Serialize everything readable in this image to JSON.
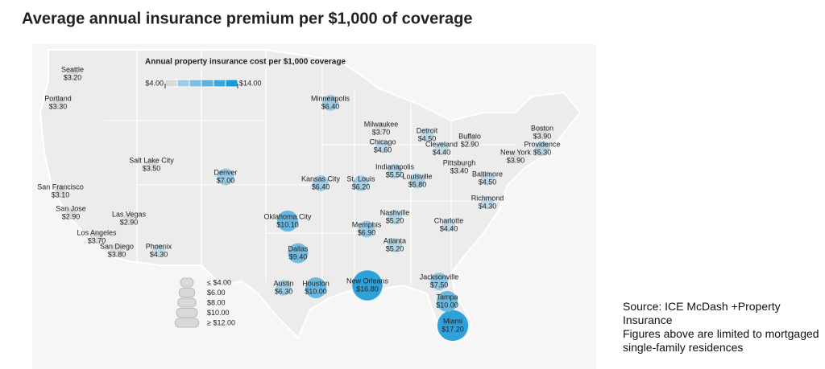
{
  "chart_data": {
    "type": "bubble-map",
    "title": "Average annual insurance premium per $1,000 of coverage",
    "color_legend": {
      "title": "Annual property insurance cost per $1,000 coverage",
      "ticks": [
        {
          "value": 4,
          "label": "$4.00"
        },
        {
          "value": 14,
          "label": "$14.00"
        }
      ]
    },
    "size_legend": {
      "ticks": [
        {
          "value": 4,
          "label": "≤ $4.00"
        },
        {
          "value": 6,
          "label": "$6.00"
        },
        {
          "value": 8,
          "label": "$8.00"
        },
        {
          "value": 10,
          "label": "$10.00"
        },
        {
          "value": 12,
          "label": "≥ $12.00"
        }
      ]
    },
    "categories": [
      "Seattle",
      "Portland",
      "San Francisco",
      "San Jose",
      "Los Angeles",
      "San Diego",
      "Las Vegas",
      "Phoenix",
      "Salt Lake City",
      "Denver",
      "Minneapolis",
      "Milwaukee",
      "Chicago",
      "Detroit",
      "Cleveland",
      "Buffalo",
      "Boston",
      "Providence",
      "New York",
      "Pittsburgh",
      "Baltimore",
      "Richmond",
      "Indianapolis",
      "Louisville",
      "Kansas City",
      "St. Louis",
      "Oklahoma City",
      "Nashville",
      "Memphis",
      "Atlanta",
      "Charlotte",
      "Dallas",
      "Austin",
      "Houston",
      "New Orleans",
      "Jacksonville",
      "Tampa",
      "Miami"
    ],
    "values": [
      3.2,
      3.3,
      3.1,
      2.9,
      3.7,
      3.8,
      2.9,
      4.3,
      3.5,
      7.0,
      6.4,
      3.7,
      4.6,
      4.5,
      4.4,
      2.9,
      3.9,
      5.3,
      3.9,
      3.4,
      4.5,
      4.3,
      5.5,
      5.8,
      6.4,
      6.2,
      10.1,
      5.2,
      6.9,
      5.2,
      4.4,
      9.4,
      6.3,
      10.0,
      16.8,
      7.5,
      10.0,
      17.2
    ],
    "value_labels": [
      "$3.20",
      "$3.30",
      "$3.10",
      "$2.90",
      "$3.70",
      "$3.80",
      "$2.90",
      "$4.30",
      "$3.50",
      "$7.00",
      "$6.40",
      "$3.70",
      "$4.60",
      "$4.50",
      "$4.40",
      "$2.90",
      "$3.90",
      "$5.30",
      "$3.90",
      "$3.40",
      "$4.50",
      "$4.30",
      "$5.50",
      "$5.80",
      "$6.40",
      "$6.20",
      "$10.10",
      "$5.20",
      "$6.90",
      "$5.20",
      "$4.40",
      "$9.40",
      "$6.30",
      "$10.00",
      "$16.80",
      "$7.50",
      "$10.00",
      "$17.20"
    ],
    "source": "Source: ICE McDash +Property Insurance",
    "note": "Figures above are limited to mortgaged single-family residences"
  }
}
